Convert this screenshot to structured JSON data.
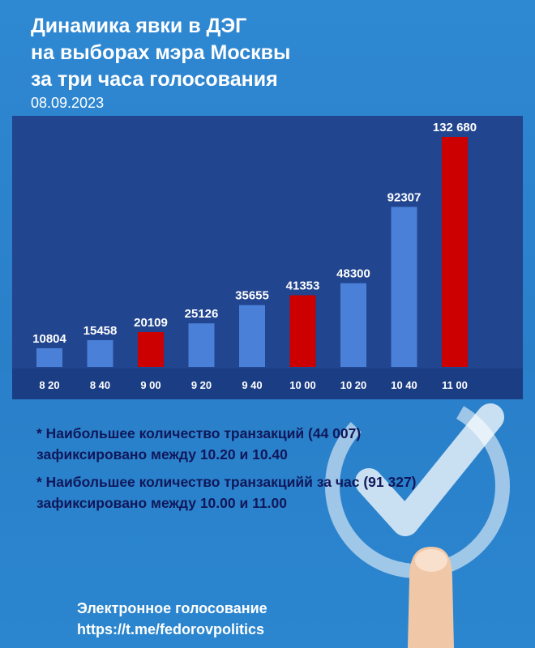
{
  "header": {
    "title_lines": [
      "Динамика явки в ДЭГ",
      "на выборах мэра Москвы",
      "за три часа голосования"
    ],
    "date": "08.09.2023"
  },
  "chart_data": {
    "type": "bar",
    "categories": [
      "8 20",
      "8 40",
      "9 00",
      "9 20",
      "9 40",
      "10 00",
      "10 20",
      "10 40",
      "11 00"
    ],
    "values": [
      10804,
      15458,
      20109,
      25126,
      35655,
      41353,
      48300,
      92307,
      132680
    ],
    "value_labels": [
      "10804",
      "15458",
      "20109",
      "25126",
      "35655",
      "41353",
      "48300",
      "92307",
      "132 680"
    ],
    "highlighted": [
      false,
      false,
      true,
      false,
      false,
      true,
      false,
      false,
      true
    ],
    "ylim": [
      0,
      132680
    ],
    "colors": {
      "bar": "#4a80d8",
      "highlight": "#cc0000",
      "plot_bg": "#21458f",
      "axis_band": "#1a3d84"
    }
  },
  "notes": [
    [
      "* Наибольшее количество транзакций (44 007)",
      "зафиксировано между 10.20 и 10.40"
    ],
    [
      "* Наибольшее количество транзакцийй за час (91 327)",
      "зафиксировано между 10.00 и 11.00"
    ]
  ],
  "footer": {
    "line1": "Электронное голосование",
    "line2": "https://t.me/fedorovpolitics"
  },
  "icons": [
    "checkmark-icon",
    "pointing-finger-icon"
  ]
}
